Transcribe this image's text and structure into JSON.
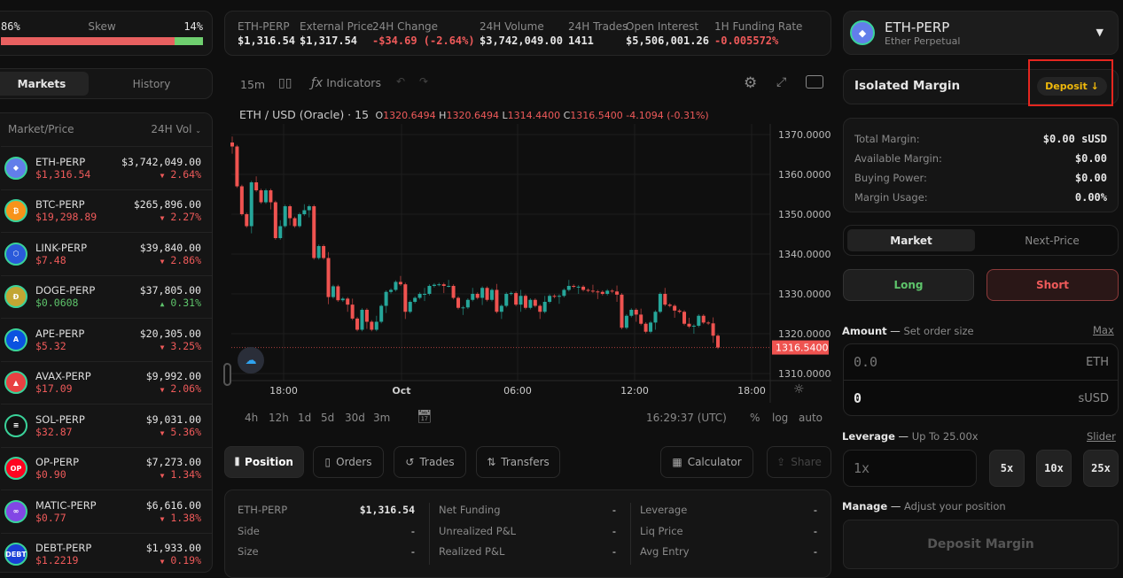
{
  "skew": {
    "left": "86%",
    "label": "Skew",
    "right": "14%",
    "short_fraction": 0.86
  },
  "left_tabs": {
    "markets": "Markets",
    "history": "History"
  },
  "market_list": {
    "col_market": "Market/Price",
    "col_vol": "24H Vol",
    "items": [
      {
        "name": "ETH-PERP",
        "price": "$1,316.54",
        "vol": "$3,742,049.00",
        "change": "2.64%",
        "dir": "down",
        "icon": "eth-icon",
        "color": "#627eea",
        "glyph": "◆"
      },
      {
        "name": "BTC-PERP",
        "price": "$19,298.89",
        "vol": "$265,896.00",
        "change": "2.27%",
        "dir": "down",
        "icon": "btc-icon",
        "color": "#f7931a",
        "glyph": "₿"
      },
      {
        "name": "LINK-PERP",
        "price": "$7.48",
        "vol": "$39,840.00",
        "change": "2.86%",
        "dir": "down",
        "icon": "link-icon",
        "color": "#2a5ada",
        "glyph": "⬡"
      },
      {
        "name": "DOGE-PERP",
        "price": "$0.0608",
        "vol": "$37,805.00",
        "change": "0.31%",
        "dir": "up",
        "icon": "doge-icon",
        "color": "#c2a633",
        "glyph": "Ð"
      },
      {
        "name": "APE-PERP",
        "price": "$5.32",
        "vol": "$20,305.00",
        "change": "3.25%",
        "dir": "down",
        "icon": "ape-icon",
        "color": "#0b52e0",
        "glyph": "A"
      },
      {
        "name": "AVAX-PERP",
        "price": "$17.09",
        "vol": "$9,992.00",
        "change": "2.06%",
        "dir": "down",
        "icon": "avax-icon",
        "color": "#e84142",
        "glyph": "▲"
      },
      {
        "name": "SOL-PERP",
        "price": "$32.87",
        "vol": "$9,031.00",
        "change": "5.36%",
        "dir": "down",
        "icon": "sol-icon",
        "color": "#111111",
        "glyph": "≡"
      },
      {
        "name": "OP-PERP",
        "price": "$0.90",
        "vol": "$7,273.00",
        "change": "1.34%",
        "dir": "down",
        "icon": "op-icon",
        "color": "#ff0420",
        "glyph": "OP"
      },
      {
        "name": "MATIC-PERP",
        "price": "$0.77",
        "vol": "$6,616.00",
        "change": "1.38%",
        "dir": "down",
        "icon": "matic-icon",
        "color": "#8247e5",
        "glyph": "∞"
      },
      {
        "name": "DEBT-PERP",
        "price": "$1.2219",
        "vol": "$1,933.00",
        "change": "0.19%",
        "dir": "down",
        "icon": "debt-icon",
        "color": "#1a3fd6",
        "glyph": "DEBT"
      }
    ]
  },
  "stats": [
    {
      "label": "ETH-PERP",
      "value": "$1,316.54",
      "tone": "white"
    },
    {
      "label": "External Price",
      "value": "$1,317.54",
      "tone": "white"
    },
    {
      "label": "24H Change",
      "value": "-$34.69 (-2.64%)",
      "tone": "red"
    },
    {
      "label": "24H Volume",
      "value": "$3,742,049.00",
      "tone": "white"
    },
    {
      "label": "24H Trades",
      "value": "1411",
      "tone": "white"
    },
    {
      "label": "Open Interest",
      "value": "$5,506,001.26",
      "tone": "white"
    },
    {
      "label": "1H Funding Rate",
      "value": "-0.005572%",
      "tone": "red"
    }
  ],
  "chart_toolbar": {
    "interval": "15m",
    "indicators": "Indicators"
  },
  "chart_legend": {
    "symbol": "ETH / USD (Oracle) · 15",
    "o": "1320.6494",
    "h": "1320.6494",
    "l": "1314.4400",
    "c": "1316.5400",
    "chg": "-4.1094 (-0.31%)"
  },
  "chart_data": {
    "type": "candlestick",
    "first_open": 1368,
    "closes": [
      1367,
      1357,
      1350,
      1347,
      1358,
      1356,
      1353,
      1356,
      1353,
      1344,
      1347,
      1352,
      1349,
      1347,
      1350,
      1351,
      1352,
      1339,
      1342,
      1339,
      1329.2,
      1331.9,
      1328.4,
      1328.8,
      1327.3,
      1323.8,
      1321,
      1326,
      1323,
      1321,
      1323,
      1327,
      1330.5,
      1331,
      1333,
      1332.4,
      1325.5,
      1328,
      1329,
      1330,
      1330,
      1332,
      1332.3,
      1332.4,
      1332,
      1332,
      1329,
      1326.5,
      1326.6,
      1328.5,
      1330,
      1329,
      1331.5,
      1328.5,
      1331,
      1325.5,
      1327,
      1330,
      1330.2,
      1327.3,
      1329.5,
      1326.5,
      1328.5,
      1327,
      1325.5,
      1328,
      1329.5,
      1329.3,
      1329.5,
      1331,
      1332,
      1331.8,
      1331.8,
      1331,
      1330.8,
      1330.6,
      1330.5,
      1330,
      1330.8,
      1330.6,
      1329.8,
      1321.5,
      1324.5,
      1326,
      1324.8,
      1322.5,
      1320.5,
      1322.8,
      1325.5,
      1330,
      1327.3,
      1327,
      1325.8,
      1325.5,
      1322.5,
      1321.8,
      1322,
      1324.5,
      1322.8,
      1322.6,
      1319.5,
      1316.54
    ],
    "y_ticks": [
      "1370.0000",
      "1360.0000",
      "1350.0000",
      "1340.0000",
      "1330.0000",
      "1320.0000",
      "1310.0000"
    ],
    "ylim": [
      1308,
      1373
    ],
    "x_ticks": [
      "18:00",
      "Oct",
      "06:00",
      "12:00",
      "18:00"
    ],
    "last_price": "1316.5400",
    "up_color": "#26a69a",
    "down_color": "#ef5350"
  },
  "chart_bottom": {
    "ranges": [
      "4h",
      "12h",
      "1d",
      "5d",
      "30d",
      "3m"
    ],
    "clock": "16:29:37 (UTC)",
    "pct": "%",
    "log": "log",
    "auto": "auto"
  },
  "bottom_tabs": {
    "position": "Position",
    "orders": "Orders",
    "trades": "Trades",
    "transfers": "Transfers",
    "calculator": "Calculator",
    "share": "Share"
  },
  "position": {
    "cols": [
      [
        {
          "k": "ETH-PERP",
          "v": "$1,316.54"
        },
        {
          "k": "Side",
          "v": "-"
        },
        {
          "k": "Size",
          "v": "-"
        }
      ],
      [
        {
          "k": "Net Funding",
          "v": "-"
        },
        {
          "k": "Unrealized P&L",
          "v": "-"
        },
        {
          "k": "Realized P&L",
          "v": "-"
        }
      ],
      [
        {
          "k": "Leverage",
          "v": "-"
        },
        {
          "k": "Liq Price",
          "v": "-"
        },
        {
          "k": "Avg Entry",
          "v": "-"
        }
      ]
    ]
  },
  "selector": {
    "name": "ETH-PERP",
    "sub": "Ether Perpetual"
  },
  "margin": {
    "title": "Isolated Margin",
    "deposit": "Deposit ↓",
    "accent": "#f0b90b",
    "rows": [
      {
        "k": "Total Margin:",
        "v": "$0.00 sUSD"
      },
      {
        "k": "Available Margin:",
        "v": "$0.00"
      },
      {
        "k": "Buying Power:",
        "v": "$0.00"
      },
      {
        "k": "Margin Usage:",
        "v": "0.00%"
      }
    ]
  },
  "order": {
    "market": "Market",
    "next": "Next-Price",
    "long": "Long",
    "short": "Short",
    "amount_label": "Amount",
    "amount_hint": "Set order size",
    "max": "Max",
    "eth_placeholder": "0.0",
    "eth_unit": "ETH",
    "susd_value": "0",
    "susd_unit": "sUSD",
    "lev_label": "Leverage",
    "lev_hint": "Up To 25.00x",
    "slider": "Slider",
    "lev_placeholder": "1x",
    "lev_opts": [
      "5x",
      "10x",
      "25x"
    ],
    "manage_label": "Manage",
    "manage_hint": "Adjust your position",
    "deposit_margin": "Deposit Margin"
  }
}
